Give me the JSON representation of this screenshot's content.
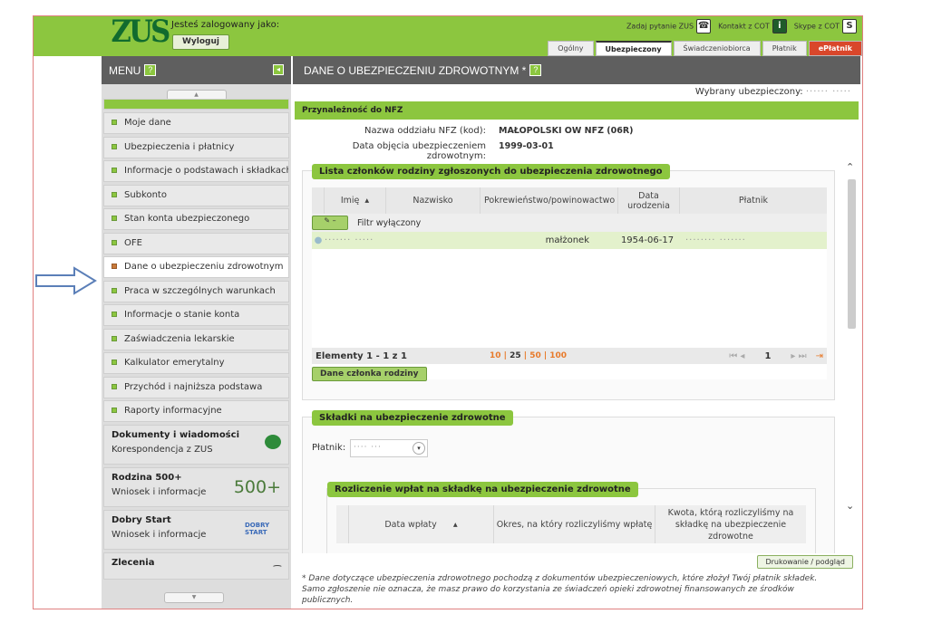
{
  "header": {
    "logo": "ZUS",
    "logged_in_label": "Jesteś zalogowany jako:",
    "logout": "Wyloguj",
    "tools": [
      {
        "label": "Zadaj pytanie ZUS",
        "icon": "phone-icon"
      },
      {
        "label": "Kontakt z COT",
        "icon": "info-icon"
      },
      {
        "label": "Skype z COT",
        "icon": "skype-icon"
      }
    ],
    "tabs": [
      {
        "label": "Ogólny"
      },
      {
        "label": "Ubezpieczony",
        "active": true
      },
      {
        "label": "Świadczeniobiorca"
      },
      {
        "label": "Płatnik"
      },
      {
        "label": "ePłatnik"
      }
    ]
  },
  "sidebar": {
    "title": "MENU",
    "help": "?",
    "items": [
      {
        "label": "Moje dane"
      },
      {
        "label": "Ubezpieczenia i płatnicy"
      },
      {
        "label": "Informacje o podstawach i składkach"
      },
      {
        "label": "Subkonto"
      },
      {
        "label": "Stan konta ubezpieczonego"
      },
      {
        "label": "OFE"
      },
      {
        "label": "Dane o ubezpieczeniu zdrowotnym",
        "active": true
      },
      {
        "label": "Praca w szczególnych warunkach"
      },
      {
        "label": "Informacje o stanie konta"
      },
      {
        "label": "Zaświadczenia lekarskie"
      },
      {
        "label": "Kalkulator emerytalny"
      },
      {
        "label": "Przychód i najniższa podstawa"
      },
      {
        "label": "Raporty informacyjne"
      }
    ],
    "sections": [
      {
        "title": "Dokumenty i wiadomości",
        "subtitle": "Korespondencja z ZUS",
        "icon": "speech-bubble-icon"
      },
      {
        "title": "Rodzina 500+",
        "subtitle": "Wniosek i informacje",
        "icon": "rodzina-500-logo",
        "logo_text": "500+"
      },
      {
        "title": "Dobry Start",
        "subtitle": "Wniosek i informacje",
        "icon": "dobry-start-logo",
        "logo_text": "DOBRY START"
      },
      {
        "title": "Zlecenia",
        "subtitle": "",
        "icon": "zlecenia-icon"
      }
    ]
  },
  "main": {
    "title": "DANE O UBEZPIECZENIU ZDROWOTNYM *",
    "help": "?",
    "selected_insured_label": "Wybrany ubezpieczony:",
    "nfz": {
      "title": "Przynależność do NFZ",
      "branch_label": "Nazwa oddziału NFZ (kod):",
      "branch_value": "MAŁOPOLSKI OW NFZ (06R)",
      "date_label": "Data objęcia ubezpieczeniem zdrowotnym:",
      "date_value": "1999-03-01"
    },
    "family": {
      "title": "Lista członków rodziny zgłoszonych do ubezpieczenia zdrowotnego",
      "columns": [
        "Imię",
        "Nazwisko",
        "Pokrewieństwo/powinowactwo",
        "Data urodzenia",
        "Płatnik"
      ],
      "filter_label": "Filtr wyłączony",
      "rows": [
        {
          "relation": "małżonek",
          "birth_date": "1954-06-17"
        }
      ],
      "pager": {
        "summary": "Elementy 1 - 1 z 1",
        "sizes": [
          "10",
          "25",
          "50",
          "100"
        ],
        "selected_size": "25",
        "page": "1"
      },
      "details_button": "Dane członka rodziny"
    },
    "contributions": {
      "title": "Składki na ubezpieczenie zdrowotne",
      "payer_label": "Płatnik:",
      "settlement": {
        "title": "Rozliczenie wpłat na składkę na ubezpieczenie zdrowotne",
        "columns": [
          "Data wpłaty",
          "Okres, na który rozliczyliśmy wpłatę",
          "Kwota, którą rozliczyliśmy na składkę na ubezpieczenie zdrowotne"
        ]
      }
    },
    "print_button": "Drukowanie / podgląd",
    "footnote": "* Dane dotyczące ubezpieczenia zdrowotnego pochodzą z dokumentów ubezpieczeniowych, które złożył Twój płatnik składek. Samo zgłoszenie nie oznacza, że masz prawo do korzystania ze świadczeń opieki zdrowotnej finansowanych ze środków publicznych."
  },
  "colors": {
    "brand_green": "#8cc63f",
    "header_gray": "#5f5f5f",
    "eplatnik_red": "#d9472b",
    "arrow_blue": "#5b7fb8"
  }
}
